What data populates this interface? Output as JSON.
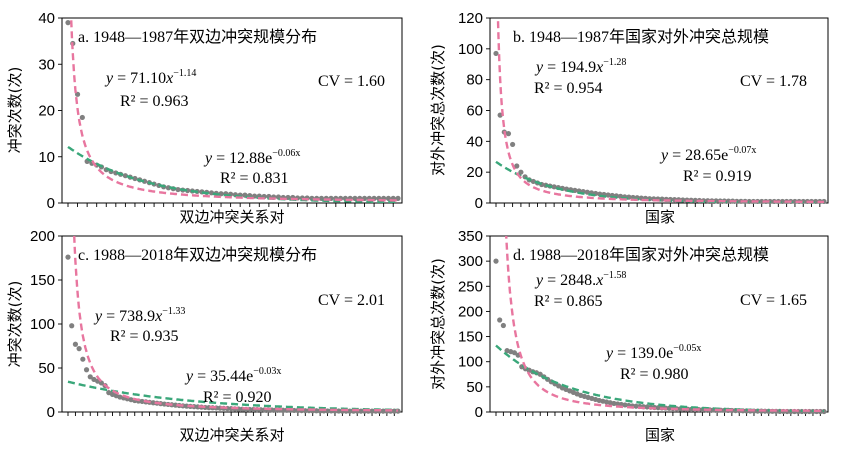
{
  "chart_data": [
    {
      "type": "scatter",
      "title": "a. 1948—1987年双边冲突规模分布",
      "xlabel": "双边冲突关系对",
      "ylabel": "冲突次数(次)",
      "ylim": [
        0,
        40
      ],
      "yticks": [
        "0",
        "10",
        "20",
        "30",
        "40"
      ],
      "n_points": 70,
      "values": [
        39,
        34.5,
        23.5,
        18.5,
        9,
        8.6,
        8.2,
        7.8,
        7.2,
        6.8,
        6.5,
        6.2,
        5.9,
        5.6,
        5.3,
        5,
        4.7,
        4.4,
        4.1,
        3.8,
        3.5,
        3.3,
        3.1,
        2.9,
        2.8,
        2.7,
        2.6,
        2.5,
        2.4,
        2.3,
        2.2,
        2.1,
        2,
        2,
        1.9,
        1.8,
        1.7,
        1.7,
        1.6,
        1.5,
        1.5,
        1.4,
        1.4,
        1.3,
        1.3,
        1.2,
        1.2,
        1.2,
        1.1,
        1.1,
        1.1,
        1,
        1,
        1,
        1,
        1,
        1,
        1,
        1,
        1,
        1,
        1,
        1,
        1,
        1,
        1,
        1,
        1,
        1,
        1
      ],
      "power_fit": {
        "a": 71.1,
        "b": -1.14,
        "eq": "y = 71.10x",
        "exp": "−1.14",
        "r2": "R² = 0.963"
      },
      "exp_fit": {
        "a": 12.88,
        "b": -0.06,
        "eq": "y = 12.88e",
        "exp": "−0.06x",
        "r2": "R² = 0.831"
      },
      "cv": "CV = 1.60"
    },
    {
      "type": "scatter",
      "title": "b. 1948—1987年国家对外冲突总规模",
      "xlabel": "国家",
      "ylabel": "对外冲突总次数(次)",
      "ylim": [
        0,
        120
      ],
      "yticks": [
        "0",
        "20",
        "40",
        "60",
        "80",
        "100",
        "120"
      ],
      "n_points": 80,
      "values": [
        97,
        57,
        46,
        45,
        38,
        24,
        20,
        17,
        15,
        14,
        13,
        12,
        11.5,
        11,
        10.5,
        10,
        9.5,
        9,
        8.6,
        8.2,
        7.8,
        7.4,
        7,
        6.6,
        6.2,
        5.8,
        5.5,
        5.2,
        4.9,
        4.6,
        4.3,
        4,
        3.8,
        3.6,
        3.4,
        3.2,
        3,
        2.8,
        2.7,
        2.6,
        2.5,
        2.4,
        2.3,
        2.2,
        2.1,
        2,
        1.9,
        1.8,
        1.7,
        1.6,
        1.5,
        1.5,
        1.4,
        1.4,
        1.3,
        1.3,
        1.2,
        1.2,
        1.1,
        1.1,
        1.1,
        1,
        1,
        1,
        1,
        1,
        1,
        1,
        1,
        1,
        1,
        1,
        1,
        1,
        1,
        1,
        1,
        1,
        1,
        1
      ],
      "power_fit": {
        "a": 194.9,
        "b": -1.28,
        "eq": "y = 194.9x",
        "exp": "−1.28",
        "r2": "R² = 0.954"
      },
      "exp_fit": {
        "a": 28.65,
        "b": -0.07,
        "eq": "y = 28.65e",
        "exp": "−0.07x",
        "r2": "R² = 0.919"
      },
      "cv": "CV = 1.78"
    },
    {
      "type": "scatter",
      "title": "c. 1988—2018年双边冲突规模分布",
      "xlabel": "双边冲突关系对",
      "ylabel": "冲突次数(次)",
      "ylim": [
        0,
        200
      ],
      "yticks": [
        "0",
        "50",
        "100",
        "150",
        "200"
      ],
      "n_points": 90,
      "values": [
        176,
        98,
        77,
        72,
        60,
        48,
        40,
        37,
        35,
        33,
        30,
        22,
        20,
        18.5,
        17,
        16,
        15,
        14,
        13,
        12.5,
        12,
        11.5,
        11,
        10.5,
        10,
        9.5,
        9,
        8.6,
        8.2,
        7.8,
        7.4,
        7,
        6.7,
        6.4,
        6.1,
        5.8,
        5.5,
        5.2,
        5,
        4.8,
        4.6,
        4.4,
        4.2,
        4,
        3.8,
        3.6,
        3.4,
        3.2,
        3,
        2.9,
        2.8,
        2.7,
        2.6,
        2.5,
        2.4,
        2.3,
        2.2,
        2.1,
        2,
        2,
        1.9,
        1.8,
        1.7,
        1.6,
        1.5,
        1.5,
        1.4,
        1.4,
        1.3,
        1.3,
        1.2,
        1.2,
        1.1,
        1.1,
        1,
        1,
        1,
        1,
        1,
        1,
        1,
        1,
        1,
        1,
        1,
        1,
        1,
        1,
        1,
        1
      ],
      "power_fit": {
        "a": 738.9,
        "b": -1.33,
        "eq": "y = 738.9x",
        "exp": "−1.33",
        "r2": "R² =  0.935"
      },
      "exp_fit": {
        "a": 35.44,
        "b": -0.03,
        "eq": "y = 35.44e",
        "exp": "−0.03x",
        "r2": "R² = 0.920"
      },
      "cv": "CV = 2.01"
    },
    {
      "type": "scatter",
      "title": "d. 1988—2018年国家对外冲突总规模",
      "xlabel": "国家",
      "ylabel": "对外冲突总次数(次)",
      "ylim": [
        0,
        350
      ],
      "yticks": [
        "0",
        "50",
        "100",
        "150",
        "200",
        "250",
        "300",
        "350"
      ],
      "n_points": 90,
      "values": [
        300,
        183,
        172,
        122,
        120,
        118,
        113,
        90,
        86,
        83,
        80,
        78,
        75,
        70,
        65,
        60,
        56,
        52,
        48,
        45,
        42,
        39,
        36,
        33,
        31,
        29,
        27,
        25,
        23,
        21.5,
        20,
        18.5,
        17,
        16,
        15,
        14,
        13,
        12,
        11.5,
        11,
        10.5,
        10,
        9.5,
        9,
        8.6,
        8.2,
        7.8,
        7.4,
        7,
        6.6,
        6.2,
        5.8,
        5.5,
        5.2,
        5,
        4.8,
        4.6,
        4.4,
        4.2,
        4,
        3.8,
        3.6,
        3.4,
        3.2,
        3,
        2.8,
        2.6,
        2.4,
        2.2,
        2,
        1.9,
        1.8,
        1.7,
        1.6,
        1.5,
        1.4,
        1.3,
        1.2,
        1.1,
        1,
        1,
        1,
        1,
        1,
        1,
        1,
        1,
        1,
        1,
        1
      ],
      "power_fit": {
        "a": 2848,
        "b": -1.58,
        "eq": "y = 2848.x",
        "exp": "−1.58",
        "r2": "R² = 0.865"
      },
      "exp_fit": {
        "a": 139.0,
        "b": -0.05,
        "eq": "y = 139.0e",
        "exp": "−0.05x",
        "r2": "R² = 0.980"
      },
      "cv": "CV = 1.65"
    }
  ],
  "colors": {
    "points": "#808080",
    "power_curve": "#e8769f",
    "exp_curve": "#3aa77a"
  }
}
